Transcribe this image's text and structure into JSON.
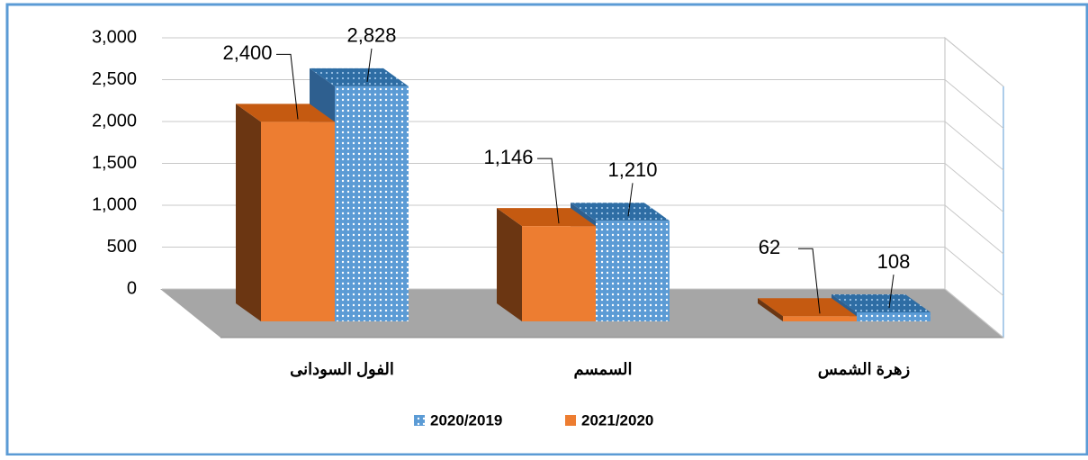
{
  "chart_data": {
    "type": "bar3d",
    "categories": [
      "الفول السودانى",
      "السمسم",
      "زهرة الشمس"
    ],
    "series": [
      {
        "name": "2021/2020",
        "color": "#ed7d31",
        "values": [
          2400,
          1146,
          62
        ],
        "value_labels": [
          "2,400",
          "1,146",
          "62"
        ]
      },
      {
        "name": "2020/2019",
        "color": "#5b9bd5",
        "values": [
          2828,
          1210,
          108
        ],
        "value_labels": [
          "2,828",
          "1,210",
          "108"
        ]
      }
    ],
    "ylim": [
      0,
      3000
    ],
    "yticks": [
      0,
      500,
      {
        "value": 1000,
        "label": "1,000"
      },
      {
        "value": 1500,
        "label": "1,500"
      },
      {
        "value": 2000,
        "label": "2,000"
      },
      {
        "value": 2500,
        "label": "2,500"
      },
      {
        "value": 3000,
        "label": "3,000"
      }
    ],
    "grid": true
  }
}
